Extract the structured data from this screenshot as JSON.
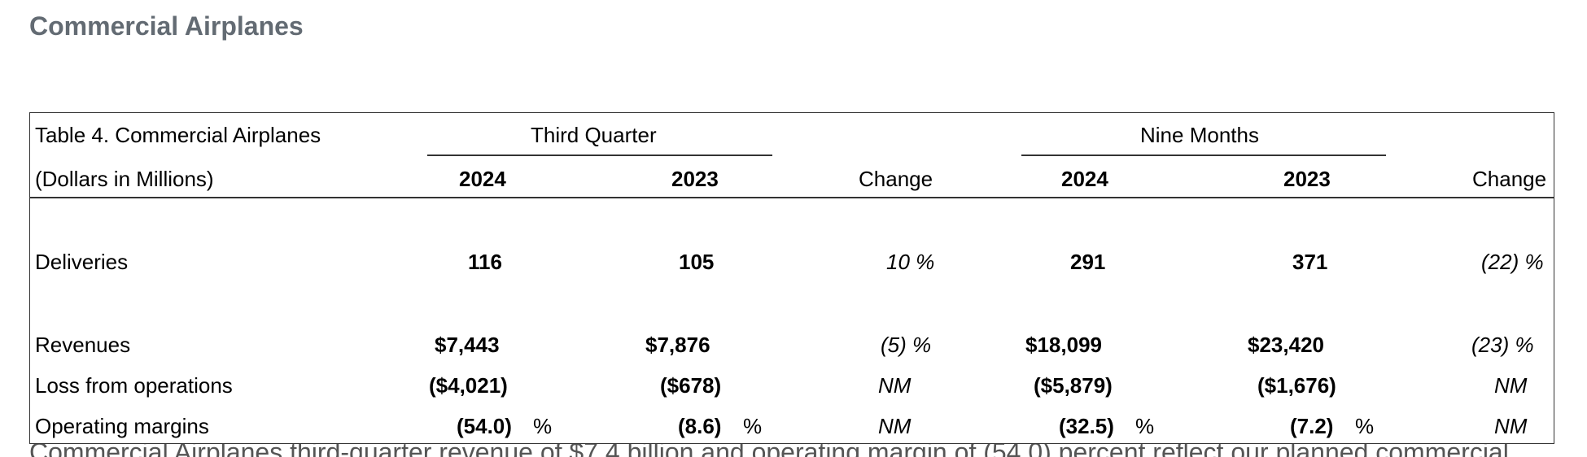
{
  "page_title": "Commercial Airplanes",
  "table": {
    "caption": "Table 4. Commercial Airplanes",
    "units": "(Dollars in Millions)",
    "group_third_quarter": "Third Quarter",
    "group_nine_months": "Nine Months",
    "col_q_2024": "2024",
    "col_q_2023": "2023",
    "col_q_change": "Change",
    "col_n_2024": "2024",
    "col_n_2023": "2023",
    "col_n_change": "Change",
    "rows": [
      {
        "label": "Deliveries",
        "q2024": "116",
        "q2023": "105",
        "qchange": "10 %",
        "n2024": "291",
        "n2023": "371",
        "nchange": "(22) %"
      },
      {
        "label": "Revenues",
        "q2024": "$7,443",
        "q2023": "$7,876",
        "qchange": "(5) %",
        "n2024": "$18,099",
        "n2023": "$23,420",
        "nchange": "(23) %"
      },
      {
        "label": "Loss from operations",
        "q2024": "($4,021)",
        "q2023": "($678)",
        "qchange": "NM",
        "n2024": "($5,879)",
        "n2023": "($1,676)",
        "nchange": "NM"
      },
      {
        "label": "Operating margins",
        "q2024": "(54.0)",
        "q2023": "(8.6)",
        "qchange": "NM",
        "n2024": "(32.5)",
        "n2023": "(7.2)",
        "nchange": "NM",
        "pct": "%"
      }
    ]
  },
  "cutoff_text": "Commercial Airplanes third-quarter revenue of $7.4 billion and operating margin of (54.0) percent reflect our planned commercial"
}
